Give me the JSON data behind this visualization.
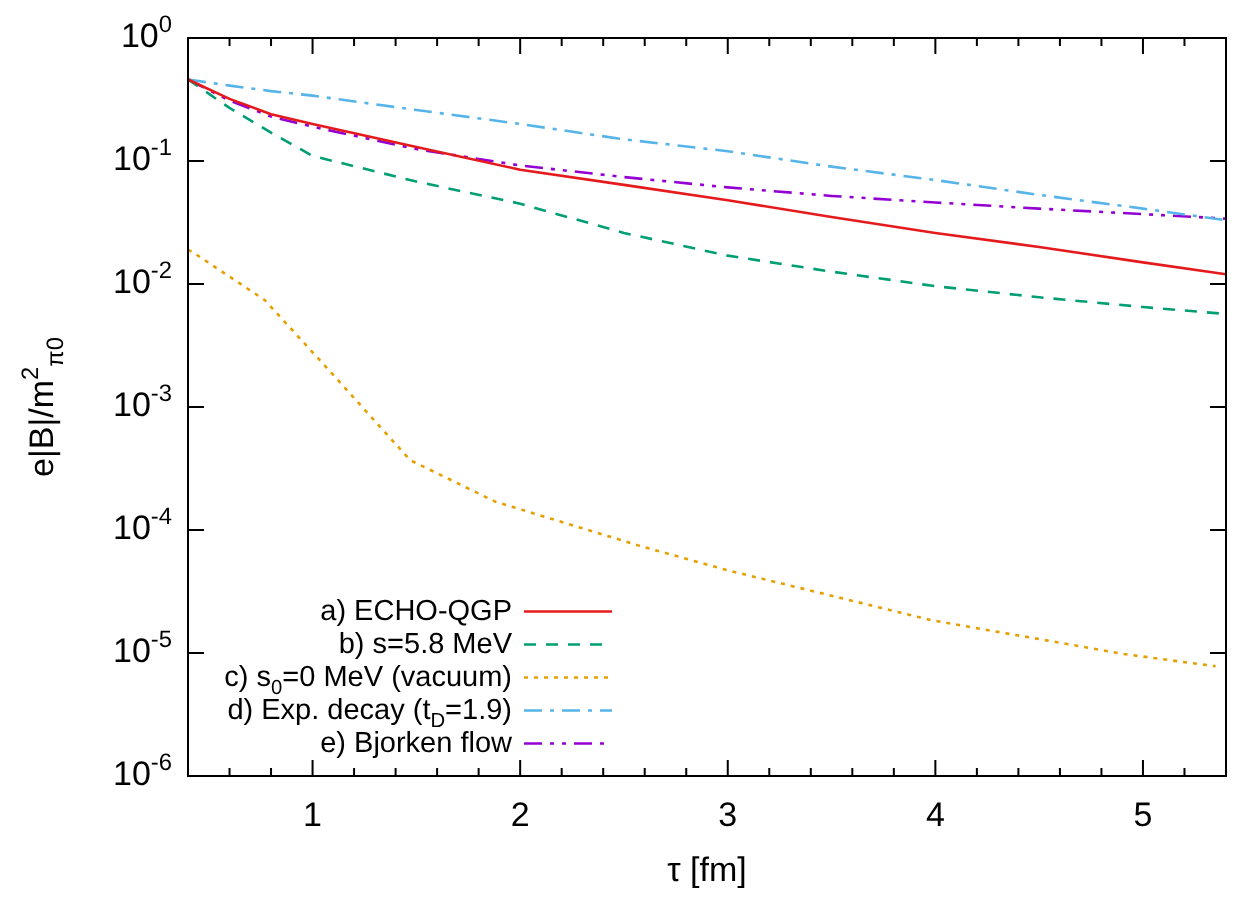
{
  "chart_data": {
    "type": "line",
    "xlabel": "τ [fm]",
    "ylabel": "e|B|/m$^{2}$$_{π0}$",
    "log": "y",
    "grid": false,
    "legend": "bottom left",
    "marker": "none",
    "xlim": [
      0.4,
      5.4
    ],
    "ylim": [
      1e-06,
      1
    ],
    "xticks": [
      {
        "value": 0.4,
        "label": null
      },
      {
        "value": 0.6,
        "label": null
      },
      {
        "value": 0.8,
        "label": null
      },
      1,
      {
        "value": 1.2,
        "label": null
      },
      {
        "value": 1.4,
        "label": null
      },
      {
        "value": 1.6,
        "label": null
      },
      {
        "value": 1.8,
        "label": null
      },
      2,
      {
        "value": 2.2,
        "label": null
      },
      {
        "value": 2.4,
        "label": null
      },
      {
        "value": 2.6,
        "label": null
      },
      {
        "value": 2.8,
        "label": null
      },
      3,
      {
        "value": 3.2,
        "label": null
      },
      {
        "value": 3.4,
        "label": null
      },
      {
        "value": 3.6,
        "label": null
      },
      {
        "value": 3.8,
        "label": null
      },
      4,
      {
        "value": 4.2,
        "label": null
      },
      {
        "value": 4.4,
        "label": null
      },
      {
        "value": 4.6,
        "label": null
      },
      {
        "value": 4.8,
        "label": null
      },
      5,
      {
        "value": 5.2,
        "label": null
      },
      {
        "value": 5.4,
        "label": null
      }
    ],
    "yticks": [
      {
        "value": 1,
        "label": "10$^{0}$"
      },
      {
        "value": 0.1,
        "label": "10$^{-1}$"
      },
      {
        "value": 0.01,
        "label": "10$^{-2}$"
      },
      {
        "value": 0.001,
        "label": "10$^{-3}$"
      },
      {
        "value": 0.0001,
        "label": "10$^{-4}$"
      },
      {
        "value": 1e-05,
        "label": "10$^{-5}$"
      },
      {
        "value": 1e-06,
        "label": "10$^{-6}$"
      }
    ],
    "x": [
      0.4,
      0.6,
      0.8,
      1,
      1.5,
      2,
      2.5,
      3,
      3.5,
      4,
      4.5,
      5,
      5.4
    ],
    "series": [
      {
        "name": "a) ECHO-QGP",
        "color": "#e41a1c",
        "line_style": "solid",
        "values": [
          0.46,
          0.32,
          0.24,
          0.2,
          0.13,
          0.085,
          0.064,
          0.048,
          0.035,
          0.026,
          0.02,
          0.015,
          0.012
        ]
      },
      {
        "name": "b) s=5.8 MeV",
        "color": "#009e73",
        "line_style": "dashed",
        "values": [
          0.46,
          0.27,
          0.17,
          0.11,
          0.068,
          0.045,
          0.026,
          0.017,
          0.0126,
          0.0096,
          0.0078,
          0.0065,
          0.0057
        ]
      },
      {
        "name": "c) s$_{0}$=0 MeV (vacuum)",
        "color": "#e69f00",
        "line_style": "dotted",
        "x": [
          0.4,
          0.43,
          0.77,
          1.09,
          1.47,
          1.88,
          2.58,
          3.0,
          3.98,
          4.91,
          5.35
        ],
        "values": [
          0.019,
          0.0178,
          0.0074,
          0.0019,
          0.00037,
          0.00017,
          7.4e-05,
          4.7e-05,
          1.85e-05,
          9.8e-06,
          7.8e-06
        ]
      },
      {
        "name": "d) Exp. decay (t$_{D}$=1.9)",
        "color": "#56b4e9",
        "line_style": "dashdot",
        "values": [
          0.46,
          0.41,
          0.37,
          0.34,
          0.26,
          0.2,
          0.15,
          0.12,
          0.09,
          0.07,
          0.053,
          0.041,
          0.033
        ]
      },
      {
        "name": "e) Bjorken flow",
        "color": "#9400d3",
        "line_style": "dashdotdot",
        "values": [
          0.46,
          0.31,
          0.23,
          0.19,
          0.125,
          0.092,
          0.074,
          0.061,
          0.052,
          0.046,
          0.041,
          0.037,
          0.034
        ]
      }
    ]
  }
}
